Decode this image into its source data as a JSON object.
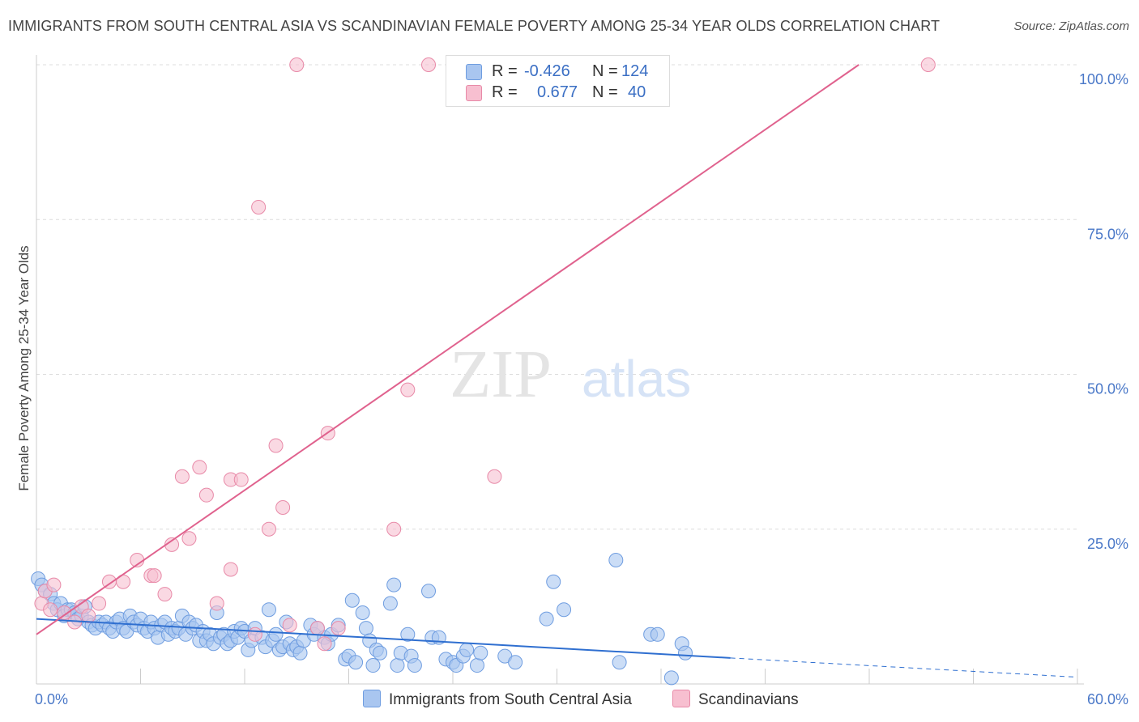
{
  "title": "IMMIGRANTS FROM SOUTH CENTRAL ASIA VS SCANDINAVIAN FEMALE POVERTY AMONG 25-34 YEAR OLDS CORRELATION CHART",
  "source": "Source: ZipAtlas.com",
  "watermark": {
    "zip": "ZIP",
    "atlas": "atlas"
  },
  "legend": {
    "r_label": "R =",
    "n_label": "N =",
    "rows": [
      {
        "series": "Immigrants from South Central Asia",
        "r": "-0.426",
        "n": "124",
        "color": "#a9c6f0",
        "border": "#6f9de0"
      },
      {
        "series": "Scandinavians",
        "r": "0.677",
        "n": "40",
        "color": "#f7bfd0",
        "border": "#e88aa8"
      }
    ]
  },
  "chart_data": {
    "type": "scatter",
    "title": "IMMIGRANTS FROM SOUTH CENTRAL ASIA VS SCANDINAVIAN FEMALE POVERTY AMONG 25-34 YEAR OLDS CORRELATION CHART",
    "xlabel": "",
    "ylabel": "Female Poverty Among 25-34 Year Olds",
    "xlim": [
      0,
      60
    ],
    "ylim": [
      0,
      100
    ],
    "x_tick_labels": [
      "0.0%",
      "60.0%"
    ],
    "y_tick_labels": [
      "25.0%",
      "50.0%",
      "75.0%",
      "100.0%"
    ],
    "y_ticks": [
      25,
      50,
      75,
      100
    ],
    "grid": "horizontal dashed",
    "legend_position": "top-center",
    "series": [
      {
        "name": "Immigrants from South Central Asia",
        "color": "#a9c6f0",
        "stroke": "#6f9de0",
        "trend": {
          "x0": 0,
          "y0": 10.5,
          "x1": 40,
          "y1": 4.2,
          "dash_to_x": 60,
          "dash_to_y": 1.1
        },
        "points": [
          [
            0.1,
            17
          ],
          [
            0.3,
            16
          ],
          [
            0.5,
            15
          ],
          [
            0.8,
            14.5
          ],
          [
            1.0,
            13
          ],
          [
            1.2,
            12
          ],
          [
            1.4,
            13
          ],
          [
            1.6,
            11
          ],
          [
            1.8,
            12
          ],
          [
            2.0,
            12
          ],
          [
            2.2,
            11.5
          ],
          [
            2.4,
            10.5
          ],
          [
            2.6,
            11
          ],
          [
            2.8,
            12.5
          ],
          [
            3.0,
            10
          ],
          [
            3.2,
            9.5
          ],
          [
            3.4,
            9
          ],
          [
            3.6,
            10
          ],
          [
            3.8,
            9.5
          ],
          [
            4.0,
            10
          ],
          [
            4.2,
            9
          ],
          [
            4.4,
            8.5
          ],
          [
            4.6,
            10
          ],
          [
            4.8,
            10.5
          ],
          [
            5.0,
            9
          ],
          [
            5.2,
            8.5
          ],
          [
            5.4,
            11
          ],
          [
            5.6,
            10
          ],
          [
            5.8,
            9.5
          ],
          [
            6.0,
            10.5
          ],
          [
            6.2,
            9
          ],
          [
            6.4,
            8.5
          ],
          [
            6.6,
            10
          ],
          [
            6.8,
            9
          ],
          [
            7.0,
            7.5
          ],
          [
            7.2,
            9.5
          ],
          [
            7.4,
            10
          ],
          [
            7.6,
            8
          ],
          [
            7.8,
            9
          ],
          [
            8.0,
            8.5
          ],
          [
            8.2,
            9
          ],
          [
            8.4,
            11
          ],
          [
            8.6,
            8
          ],
          [
            8.8,
            10
          ],
          [
            9.0,
            9
          ],
          [
            9.2,
            9.5
          ],
          [
            9.4,
            7
          ],
          [
            9.6,
            8.5
          ],
          [
            9.8,
            7
          ],
          [
            10.0,
            8
          ],
          [
            10.2,
            6.5
          ],
          [
            10.4,
            11.5
          ],
          [
            10.6,
            7.5
          ],
          [
            10.8,
            8
          ],
          [
            11.0,
            6.5
          ],
          [
            11.2,
            7
          ],
          [
            11.4,
            8.5
          ],
          [
            11.6,
            7.5
          ],
          [
            11.8,
            9
          ],
          [
            12.0,
            8.5
          ],
          [
            12.2,
            5.5
          ],
          [
            12.4,
            7
          ],
          [
            12.6,
            9
          ],
          [
            13.0,
            7.5
          ],
          [
            13.2,
            6
          ],
          [
            13.4,
            12
          ],
          [
            13.6,
            7
          ],
          [
            13.8,
            8
          ],
          [
            14.0,
            5.5
          ],
          [
            14.2,
            6
          ],
          [
            14.4,
            10
          ],
          [
            14.6,
            6.5
          ],
          [
            14.8,
            5.5
          ],
          [
            15.0,
            6
          ],
          [
            15.2,
            5
          ],
          [
            15.4,
            7
          ],
          [
            15.8,
            9.5
          ],
          [
            16.0,
            8
          ],
          [
            16.2,
            9
          ],
          [
            16.6,
            7.5
          ],
          [
            16.8,
            6.5
          ],
          [
            17.0,
            8
          ],
          [
            17.4,
            9.5
          ],
          [
            17.8,
            4
          ],
          [
            18.0,
            4.5
          ],
          [
            18.2,
            13.5
          ],
          [
            18.4,
            3.5
          ],
          [
            18.8,
            11.5
          ],
          [
            19.0,
            9
          ],
          [
            19.2,
            7
          ],
          [
            19.4,
            3
          ],
          [
            19.6,
            5.5
          ],
          [
            19.8,
            5
          ],
          [
            20.4,
            13
          ],
          [
            20.6,
            16
          ],
          [
            20.8,
            3
          ],
          [
            21.0,
            5
          ],
          [
            21.4,
            8
          ],
          [
            21.6,
            4.5
          ],
          [
            21.8,
            3
          ],
          [
            22.6,
            15
          ],
          [
            22.8,
            7.5
          ],
          [
            23.2,
            7.5
          ],
          [
            23.6,
            4
          ],
          [
            24.0,
            3.5
          ],
          [
            24.2,
            3
          ],
          [
            24.6,
            4.5
          ],
          [
            24.8,
            5.5
          ],
          [
            25.4,
            3
          ],
          [
            25.6,
            5
          ],
          [
            27.0,
            4.5
          ],
          [
            27.6,
            3.5
          ],
          [
            29.4,
            10.5
          ],
          [
            29.8,
            16.5
          ],
          [
            30.4,
            12
          ],
          [
            33.4,
            20
          ],
          [
            33.6,
            3.5
          ],
          [
            35.4,
            8
          ],
          [
            35.8,
            8
          ],
          [
            37.2,
            6.5
          ],
          [
            37.4,
            5
          ],
          [
            36.6,
            1
          ]
        ]
      },
      {
        "name": "Scandinavians",
        "color": "#f7bfd0",
        "stroke": "#e88aa8",
        "trend": {
          "x0": 0,
          "y0": 8,
          "x1": 47.4,
          "y1": 100
        },
        "points": [
          [
            0.3,
            13
          ],
          [
            0.5,
            15
          ],
          [
            0.8,
            12
          ],
          [
            1.0,
            16
          ],
          [
            1.6,
            11.5
          ],
          [
            2.2,
            10
          ],
          [
            2.6,
            12.5
          ],
          [
            3.0,
            11
          ],
          [
            3.6,
            13
          ],
          [
            4.2,
            16.5
          ],
          [
            5.0,
            16.5
          ],
          [
            5.8,
            20
          ],
          [
            6.6,
            17.5
          ],
          [
            6.8,
            17.5
          ],
          [
            7.4,
            14.5
          ],
          [
            7.8,
            22.5
          ],
          [
            8.4,
            33.5
          ],
          [
            8.8,
            23.5
          ],
          [
            9.4,
            35
          ],
          [
            9.8,
            30.5
          ],
          [
            10.4,
            13
          ],
          [
            11.2,
            18.5
          ],
          [
            11.2,
            33
          ],
          [
            11.8,
            33
          ],
          [
            12.6,
            8
          ],
          [
            12.8,
            77
          ],
          [
            13.4,
            25
          ],
          [
            13.8,
            38.5
          ],
          [
            14.2,
            28.5
          ],
          [
            14.6,
            9.5
          ],
          [
            15.0,
            100
          ],
          [
            16.2,
            9
          ],
          [
            16.6,
            6.5
          ],
          [
            16.8,
            40.5
          ],
          [
            17.4,
            9
          ],
          [
            20.6,
            25
          ],
          [
            21.4,
            47.5
          ],
          [
            22.6,
            100
          ],
          [
            26.4,
            33.5
          ],
          [
            51.4,
            100
          ]
        ]
      }
    ]
  }
}
